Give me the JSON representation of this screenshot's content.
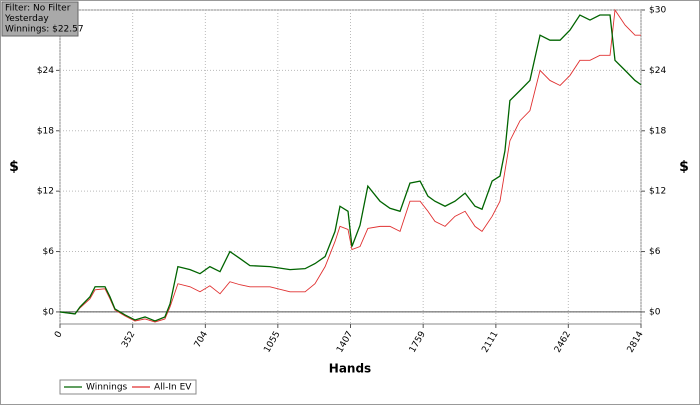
{
  "chart_data": {
    "type": "line",
    "info": [
      "Filter: No Filter",
      "Yesterday",
      "Winnings: $22.57"
    ],
    "xlabel": "Hands",
    "ylabel": "$",
    "y2label": "$",
    "x": [
      0,
      73,
      97,
      145,
      170,
      218,
      242,
      266,
      315,
      363,
      412,
      460,
      508,
      533,
      571,
      630,
      678,
      726,
      775,
      823,
      872,
      920,
      1017,
      1114,
      1187,
      1235,
      1284,
      1332,
      1356,
      1395,
      1414,
      1453,
      1491,
      1550,
      1598,
      1647,
      1695,
      1744,
      1782,
      1816,
      1865,
      1913,
      1962,
      2010,
      2044,
      2093,
      2131,
      2155,
      2179,
      2228,
      2276,
      2325,
      2373,
      2422,
      2470,
      2518,
      2567,
      2615,
      2664,
      2688,
      2737,
      2785,
      2814
    ],
    "series": [
      {
        "name": "Winnings",
        "color": "#006400",
        "values": [
          0,
          -0.2,
          0.5,
          1.5,
          2.5,
          2.5,
          1.5,
          0.3,
          -0.3,
          -0.8,
          -0.5,
          -0.9,
          -0.5,
          0.8,
          4.5,
          4.2,
          3.8,
          4.5,
          4.0,
          6.0,
          5.3,
          4.6,
          4.5,
          4.2,
          4.3,
          4.8,
          5.5,
          8.0,
          10.5,
          10.0,
          6.5,
          8.6,
          12.5,
          11.0,
          10.3,
          10.0,
          12.8,
          13.0,
          11.5,
          11.0,
          10.5,
          11.0,
          11.8,
          10.5,
          10.2,
          13.0,
          13.5,
          16.0,
          21.0,
          22.0,
          23.0,
          27.5,
          27.0,
          27.0,
          28.0,
          29.5,
          29.0,
          29.5,
          29.5,
          25.0,
          24.0,
          23.0,
          22.57
        ]
      },
      {
        "name": "All-In EV",
        "color": "#e03030",
        "values": [
          0,
          -0.2,
          0.4,
          1.3,
          2.2,
          2.3,
          1.3,
          0.2,
          -0.4,
          -0.9,
          -0.7,
          -1.0,
          -0.7,
          0.5,
          2.8,
          2.5,
          2.0,
          2.6,
          1.8,
          3.0,
          2.7,
          2.5,
          2.5,
          2.0,
          2.0,
          2.8,
          4.5,
          7.0,
          8.5,
          8.2,
          6.2,
          6.5,
          8.3,
          8.5,
          8.5,
          8.0,
          11.0,
          11.0,
          10.0,
          9.0,
          8.5,
          9.5,
          10.0,
          8.5,
          8.0,
          9.5,
          11.0,
          14.0,
          17.0,
          19.0,
          20.0,
          24.0,
          23.0,
          22.5,
          23.5,
          25.0,
          25.0,
          25.5,
          25.5,
          30.0,
          28.5,
          27.5,
          27.5
        ]
      }
    ],
    "xlim": [
      0,
      2814
    ],
    "xticks": [
      0,
      352,
      704,
      1055,
      1407,
      1759,
      2111,
      2462,
      2814
    ],
    "ylim": [
      -1.2,
      30
    ],
    "yticks": [
      {
        "value": 0,
        "label": "$0"
      },
      {
        "value": 6,
        "label": "$6"
      },
      {
        "value": 12,
        "label": "$12"
      },
      {
        "value": 18,
        "label": "$18"
      },
      {
        "value": 24,
        "label": "$24"
      },
      {
        "value": 30,
        "label": "$30"
      }
    ],
    "y2lim": [
      -1.2,
      30
    ],
    "y2ticks": [
      {
        "value": 0,
        "label": "$0"
      },
      {
        "value": 6,
        "label": "$6"
      },
      {
        "value": 12,
        "label": "$12"
      },
      {
        "value": 18,
        "label": "$18"
      },
      {
        "value": 24,
        "label": "$24"
      },
      {
        "value": 30,
        "label": "$30"
      }
    ],
    "grid": true
  }
}
